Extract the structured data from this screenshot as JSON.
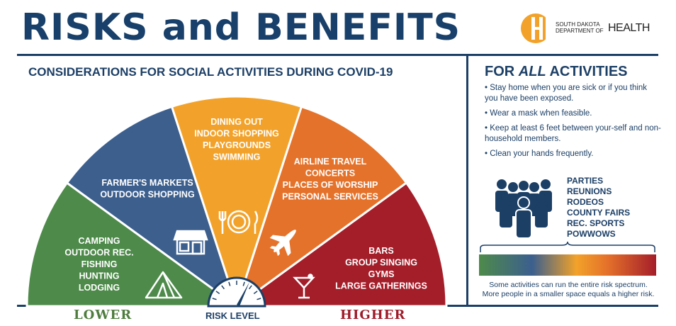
{
  "header": {
    "title": "RISKS and BENEFITS",
    "logo": {
      "line1": "SOUTH DAKOTA",
      "line2": "DEPARTMENT OF",
      "health": "HEALTH"
    }
  },
  "subtitle": "CONSIDERATIONS FOR SOCIAL ACTIVITIES DURING COVID-19",
  "gauge": {
    "segments": [
      {
        "id": "camping",
        "color": "#4e8a4a",
        "items": [
          "CAMPING",
          "OUTDOOR REC.",
          "FISHING",
          "HUNTING",
          "LODGING"
        ],
        "icon": "tent-icon"
      },
      {
        "id": "markets",
        "color": "#3c5f8e",
        "items": [
          "FARMER'S MARKETS",
          "OUTDOOR SHOPPING"
        ],
        "icon": "storefront-icon"
      },
      {
        "id": "dining",
        "color": "#f2a22a",
        "items": [
          "DINING OUT",
          "INDOOR SHOPPING",
          "PLAYGROUNDS",
          "SWIMMING"
        ],
        "icon": "plate-icon"
      },
      {
        "id": "airline",
        "color": "#e5722a",
        "items": [
          "AIRLINE TRAVEL",
          "CONCERTS",
          "PLACES OF WORSHIP",
          "PERSONAL SERVICES"
        ],
        "icon": "airplane-icon"
      },
      {
        "id": "bars",
        "color": "#a41e2a",
        "items": [
          "BARS",
          "GROUP SINGING",
          "GYMS",
          "LARGE GATHERINGS"
        ],
        "icon": "cocktail-icon"
      }
    ],
    "lower_label": "LOWER",
    "higher_label": "HIGHER",
    "risk_level_label": "RISK LEVEL"
  },
  "all_activities": {
    "title_prefix": "FOR ",
    "title_emphasis": "ALL",
    "title_suffix": " ACTIVITIES",
    "tips": [
      "Stay home when you are sick or if you think you have been exposed.",
      "Wear a mask when feasible.",
      "Keep at least 6 feet between your-self and non-household members.",
      "Clean your hands frequently."
    ],
    "crowd_icon": "crowd-icon",
    "crowd_items": [
      "PARTIES",
      "REUNIONS",
      "RODEOS",
      "COUNTY FAIRS",
      "REC. SPORTS",
      "POWWOWS"
    ],
    "note_line1": "Some activities can run the entire risk spectrum.",
    "note_line2": "More people in a smaller space equals a higher risk."
  }
}
